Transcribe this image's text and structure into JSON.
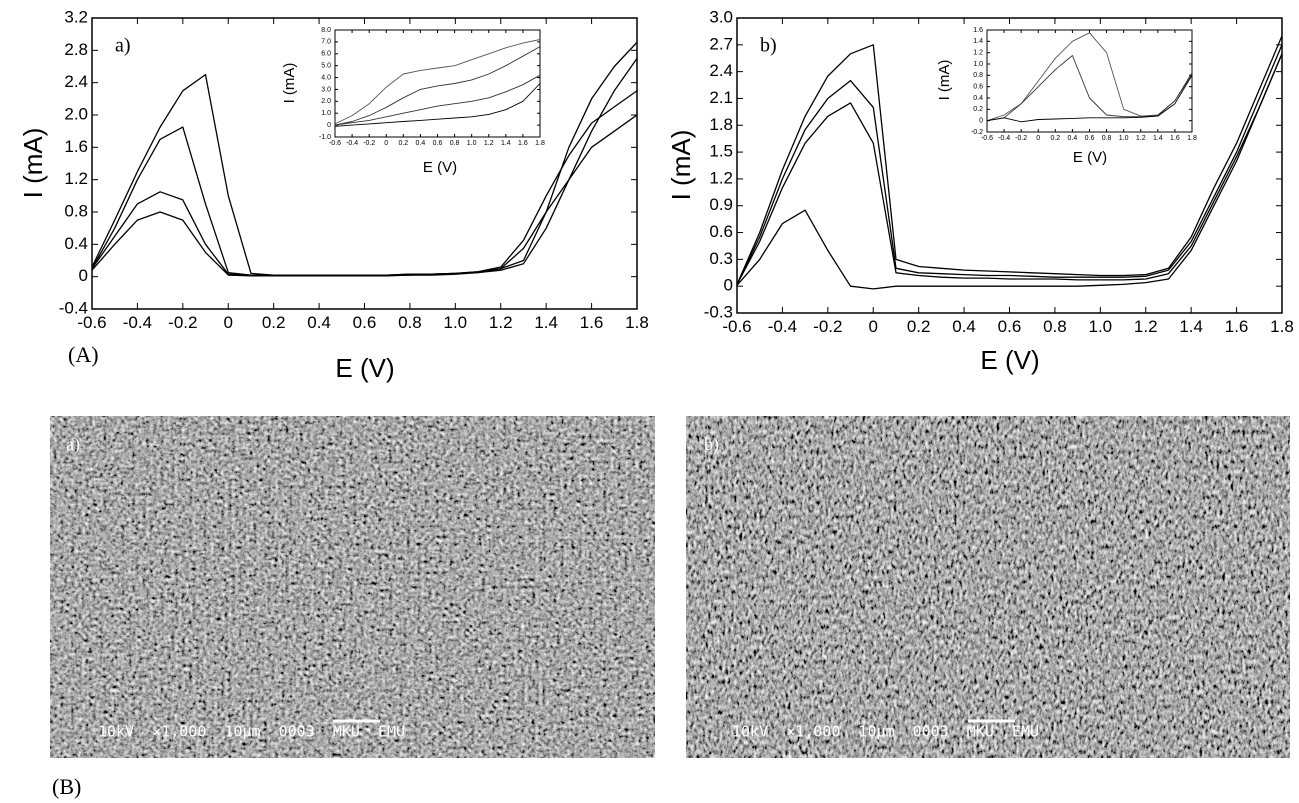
{
  "chart_data": [
    {
      "type": "line",
      "annotation": "a)",
      "x_label": "E (V)",
      "y_label": "I (mA)",
      "x": [
        -0.6,
        -0.5,
        -0.4,
        -0.3,
        -0.2,
        -0.1,
        0,
        0.1,
        0.2,
        0.3,
        0.4,
        0.5,
        0.6,
        0.7,
        0.8,
        0.9,
        1.0,
        1.1,
        1.2,
        1.3,
        1.4,
        1.5,
        1.6,
        1.7,
        1.8
      ],
      "xlim": [
        -0.6,
        1.8
      ],
      "xticks": [
        -0.6,
        -0.4,
        -0.2,
        0,
        0.2,
        0.4,
        0.6,
        0.8,
        {
          "value": 1,
          "label": "1.0"
        },
        1.2,
        1.4,
        1.6,
        1.8
      ],
      "ylim": [
        -0.4,
        3.2
      ],
      "yticks": [
        -0.4,
        0,
        0.4,
        0.8,
        1.2,
        1.6,
        {
          "value": 2,
          "label": "2.0"
        },
        2.4,
        2.8,
        3.2
      ],
      "series": [
        {
          "color": "#000",
          "values": [
            0.12,
            0.7,
            1.3,
            1.85,
            2.3,
            2.5,
            1.0,
            0.04,
            0.02,
            0.02,
            0.02,
            0.02,
            0.02,
            0.02,
            0.03,
            0.03,
            0.04,
            0.06,
            0.1,
            0.2,
            0.8,
            1.6,
            2.2,
            2.6,
            2.9
          ]
        },
        {
          "color": "#000",
          "values": [
            0.1,
            0.6,
            1.2,
            1.7,
            1.85,
            0.9,
            0.05,
            0.02,
            0.02,
            0.02,
            0.02,
            0.02,
            0.02,
            0.02,
            0.03,
            0.03,
            0.04,
            0.05,
            0.08,
            0.16,
            0.6,
            1.2,
            1.8,
            2.3,
            2.7
          ]
        },
        {
          "color": "#000",
          "values": [
            0.1,
            0.5,
            0.9,
            1.05,
            0.95,
            0.4,
            0.03,
            0.02,
            0.02,
            0.02,
            0.02,
            0.02,
            0.02,
            0.02,
            0.02,
            0.03,
            0.04,
            0.06,
            0.12,
            0.45,
            1.0,
            1.5,
            1.9,
            2.1,
            2.3
          ]
        },
        {
          "color": "#000",
          "values": [
            0.08,
            0.4,
            0.7,
            0.8,
            0.7,
            0.3,
            0.02,
            0.01,
            0.01,
            0.01,
            0.01,
            0.01,
            0.01,
            0.01,
            0.02,
            0.02,
            0.03,
            0.05,
            0.1,
            0.35,
            0.8,
            1.2,
            1.6,
            1.8,
            2.0
          ]
        }
      ]
    },
    {
      "type": "line",
      "x_label": "E (V)",
      "y_label": "I (mA)",
      "x": [
        -0.6,
        -0.4,
        -0.2,
        0,
        0.2,
        0.4,
        0.6,
        0.8,
        1.0,
        1.2,
        1.4,
        1.6,
        1.8
      ],
      "xlim": [
        -0.6,
        1.8
      ],
      "xticks": [
        -0.6,
        -0.4,
        -0.2,
        0,
        0.2,
        0.4,
        0.6,
        0.8,
        {
          "value": 1,
          "label": "1.0"
        },
        1.2,
        1.4,
        1.6,
        1.8
      ],
      "ylim": [
        -1,
        8
      ],
      "yticks": [
        {
          "value": -1,
          "label": "-1.0"
        },
        0,
        {
          "value": 1,
          "label": "1.0"
        },
        {
          "value": 2,
          "label": "2.0"
        },
        {
          "value": 3,
          "label": "3.0"
        },
        {
          "value": 4,
          "label": "4.0"
        },
        {
          "value": 5,
          "label": "5.0"
        },
        {
          "value": 6,
          "label": "6.0"
        },
        {
          "value": 7,
          "label": "7.0"
        },
        {
          "value": 8,
          "label": "8.0"
        }
      ],
      "series": [
        {
          "color": "#555",
          "values": [
            0.1,
            0.8,
            1.8,
            3.2,
            4.3,
            4.6,
            4.8,
            5.0,
            5.5,
            6.0,
            6.5,
            6.9,
            7.2
          ]
        },
        {
          "color": "#333",
          "values": [
            0.0,
            0.3,
            0.8,
            1.5,
            2.3,
            3.0,
            3.3,
            3.5,
            3.8,
            4.3,
            5.0,
            5.8,
            6.6
          ]
        },
        {
          "color": "#333",
          "values": [
            0.0,
            0.2,
            0.4,
            0.7,
            1.0,
            1.3,
            1.6,
            1.8,
            2.0,
            2.3,
            2.8,
            3.4,
            4.2
          ]
        },
        {
          "color": "#000",
          "values": [
            -0.1,
            0.0,
            0.1,
            0.2,
            0.3,
            0.4,
            0.5,
            0.6,
            0.7,
            0.9,
            1.3,
            2.0,
            3.5
          ]
        }
      ]
    },
    {
      "type": "line",
      "annotation": "b)",
      "x_label": "E (V)",
      "y_label": "I (mA)",
      "x": [
        -0.6,
        -0.5,
        -0.4,
        -0.3,
        -0.2,
        -0.1,
        0,
        0.1,
        0.2,
        0.3,
        0.4,
        0.5,
        0.6,
        0.7,
        0.8,
        0.9,
        1.0,
        1.1,
        1.2,
        1.3,
        1.4,
        1.5,
        1.6,
        1.7,
        1.8
      ],
      "xlim": [
        -0.6,
        1.8
      ],
      "xticks": [
        -0.6,
        -0.4,
        -0.2,
        0,
        0.2,
        0.4,
        0.6,
        0.8,
        {
          "value": 1,
          "label": "1.0"
        },
        1.2,
        1.4,
        1.6,
        1.8
      ],
      "ylim": [
        -0.3,
        3
      ],
      "yticks": [
        -0.3,
        0,
        0.3,
        0.6,
        0.9,
        1.2,
        1.5,
        1.8,
        2.1,
        2.4,
        2.7,
        {
          "value": 3,
          "label": "3.0"
        }
      ],
      "series": [
        {
          "color": "#000",
          "values": [
            0.02,
            0.6,
            1.3,
            1.9,
            2.35,
            2.6,
            2.7,
            0.3,
            0.22,
            0.2,
            0.18,
            0.17,
            0.16,
            0.15,
            0.14,
            0.13,
            0.12,
            0.12,
            0.13,
            0.2,
            0.55,
            1.1,
            1.6,
            2.2,
            2.8
          ]
        },
        {
          "color": "#000",
          "values": [
            0.02,
            0.55,
            1.2,
            1.75,
            2.1,
            2.3,
            2.0,
            0.2,
            0.15,
            0.14,
            0.13,
            0.12,
            0.12,
            0.11,
            0.1,
            0.1,
            0.1,
            0.1,
            0.11,
            0.18,
            0.5,
            1.0,
            1.5,
            2.1,
            2.7
          ]
        },
        {
          "color": "#000",
          "values": [
            0.02,
            0.5,
            1.1,
            1.6,
            1.9,
            2.05,
            1.6,
            0.15,
            0.12,
            0.1,
            0.09,
            0.09,
            0.08,
            0.08,
            0.08,
            0.07,
            0.07,
            0.07,
            0.08,
            0.14,
            0.45,
            0.95,
            1.45,
            2.0,
            2.6
          ]
        },
        {
          "color": "#000",
          "values": [
            0.01,
            0.3,
            0.7,
            0.85,
            0.4,
            0.0,
            -0.03,
            0,
            0,
            0,
            0,
            0,
            0,
            0,
            0,
            0,
            0.01,
            0.02,
            0.04,
            0.08,
            0.4,
            0.9,
            1.4,
            2.0,
            2.6
          ]
        }
      ]
    },
    {
      "type": "line",
      "x_label": "E (V)",
      "y_label": "I (mA)",
      "x": [
        -0.6,
        -0.4,
        -0.2,
        0,
        0.2,
        0.4,
        0.6,
        0.8,
        1.0,
        1.2,
        1.4,
        1.6,
        1.8
      ],
      "xlim": [
        -0.6,
        1.8
      ],
      "xticks": [
        -0.6,
        -0.4,
        -0.2,
        0,
        0.2,
        0.4,
        0.6,
        0.8,
        {
          "value": 1,
          "label": "1.0"
        },
        1.2,
        1.4,
        1.6,
        1.8
      ],
      "ylim": [
        -0.2,
        1.6
      ],
      "yticks": [
        -0.2,
        0,
        0.2,
        0.4,
        0.6,
        0.8,
        {
          "value": 1,
          "label": "1.0"
        },
        1.2,
        1.4,
        1.6
      ],
      "series": [
        {
          "color": "#555",
          "values": [
            0,
            0.1,
            0.3,
            0.7,
            1.1,
            1.4,
            1.55,
            1.2,
            0.2,
            0.08,
            0.1,
            0.35,
            0.85
          ]
        },
        {
          "color": "#333",
          "values": [
            0,
            0.05,
            0.3,
            0.6,
            0.9,
            1.15,
            0.4,
            0.1,
            0.07,
            0.07,
            0.09,
            0.35,
            0.82
          ]
        },
        {
          "color": "#000",
          "values": [
            0,
            0.05,
            -0.02,
            0.02,
            0.03,
            0.04,
            0.05,
            0.05,
            0.05,
            0.06,
            0.08,
            0.3,
            0.8
          ]
        }
      ]
    }
  ],
  "figure_labels": [
    "(A)",
    "(B)"
  ],
  "sem_images": [
    {
      "label": "a)",
      "caption": "10kV  ×1,000  10μm  0003  MKU  EMU"
    },
    {
      "label": "b)",
      "caption": "10kV  ×1,000  10μm  0003  MKU  EMU"
    }
  ]
}
